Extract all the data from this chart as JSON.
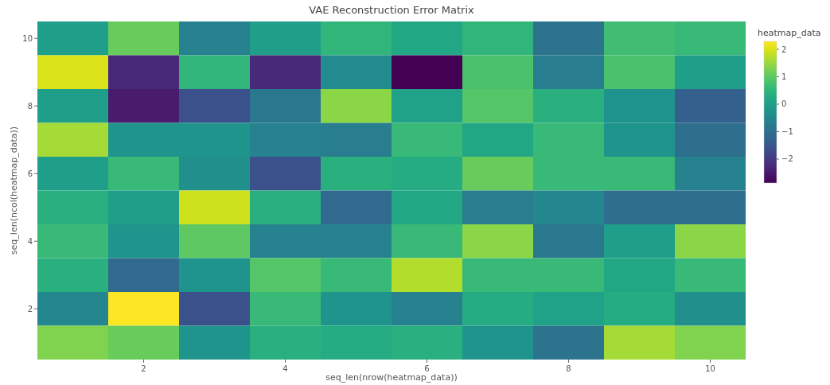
{
  "chart_data": {
    "type": "heatmap",
    "title": "VAE Reconstruction Error Matrix",
    "xlabel": "seq_len(nrow(heatmap_data))",
    "ylabel": "seq_len(ncol(heatmap_data))",
    "clabel": "heatmap_data",
    "categories": [
      null,
      "2",
      null,
      "4",
      null,
      "6",
      null,
      "8",
      null,
      "10"
    ],
    "y_categories": [
      "10",
      null,
      "8",
      null,
      "6",
      null,
      "4",
      null,
      "2",
      null
    ],
    "cells": [
      [
        0.0,
        1.1,
        -0.6,
        0.0,
        0.5,
        0.2,
        0.5,
        -0.9,
        0.7,
        0.6
      ],
      [
        2.0,
        -2.3,
        0.5,
        -2.3,
        -0.4,
        -2.87,
        0.8,
        -0.7,
        0.8,
        0.0
      ],
      [
        0.0,
        -2.5,
        -1.6,
        -0.8,
        1.4,
        0.1,
        0.9,
        0.4,
        -0.2,
        -1.3
      ],
      [
        1.6,
        -0.2,
        -0.2,
        -0.6,
        -0.7,
        0.6,
        0.2,
        0.6,
        -0.2,
        -1.0
      ],
      [
        0.0,
        0.6,
        -0.3,
        -1.6,
        0.4,
        0.3,
        1.1,
        0.6,
        0.6,
        -0.6
      ],
      [
        0.4,
        0.0,
        1.9,
        0.4,
        -1.1,
        0.2,
        -0.7,
        -0.5,
        -1.0,
        -1.0
      ],
      [
        0.6,
        -0.2,
        1.0,
        -0.6,
        -0.6,
        0.6,
        1.4,
        -0.8,
        0.0,
        1.4
      ],
      [
        0.4,
        -1.1,
        -0.2,
        0.9,
        0.6,
        1.7,
        0.6,
        0.6,
        0.2,
        0.6
      ],
      [
        -0.5,
        2.29,
        -1.6,
        0.6,
        -0.2,
        -0.6,
        0.3,
        0.1,
        0.3,
        -0.3
      ],
      [
        1.3,
        1.1,
        -0.2,
        0.4,
        0.3,
        0.4,
        -0.2,
        -0.9,
        1.6,
        1.3
      ]
    ],
    "clim": [
      -2.87,
      2.29
    ],
    "cticks": [
      {
        "value": -2,
        "label": "−2"
      },
      {
        "value": -1,
        "label": "−1"
      },
      0,
      1,
      2
    ]
  }
}
